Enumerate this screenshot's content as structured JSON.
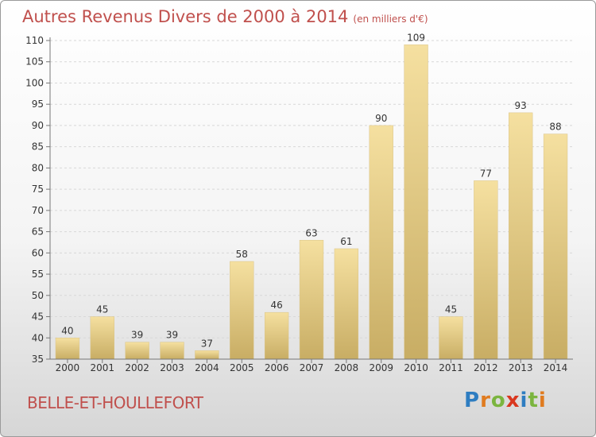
{
  "header": {
    "title": "Autres Revenus Divers de 2000 à 2014",
    "unit": "(en milliers d'€)"
  },
  "footer": {
    "place": "BELLE-ET-HOULLEFORT",
    "logo_letters": [
      "P",
      "r",
      "o",
      "x",
      "i",
      "t",
      "i"
    ]
  },
  "colors": {
    "title": "#c0504d",
    "bar_light": "#f5e0a0",
    "bar_dark": "#c8ad64",
    "logo": [
      "#2e7dc1",
      "#e07b1f",
      "#7bb53f",
      "#d9371f",
      "#2e7dc1",
      "#7bb53f",
      "#e07b1f"
    ]
  },
  "chart_data": {
    "type": "bar",
    "title": "Autres Revenus Divers de 2000 à 2014",
    "subtitle": "(en milliers d'€)",
    "categories": [
      "2000",
      "2001",
      "2002",
      "2003",
      "2004",
      "2005",
      "2006",
      "2007",
      "2008",
      "2009",
      "2010",
      "2011",
      "2012",
      "2013",
      "2014"
    ],
    "values": [
      40,
      45,
      39,
      39,
      37,
      58,
      46,
      63,
      61,
      90,
      109,
      45,
      77,
      93,
      88
    ],
    "ylim": [
      35,
      110
    ],
    "yticks": [
      35,
      40,
      45,
      50,
      55,
      60,
      65,
      70,
      75,
      80,
      85,
      90,
      95,
      100,
      105,
      110
    ],
    "grid": true,
    "legend": "none",
    "xlabel": "",
    "ylabel": ""
  }
}
